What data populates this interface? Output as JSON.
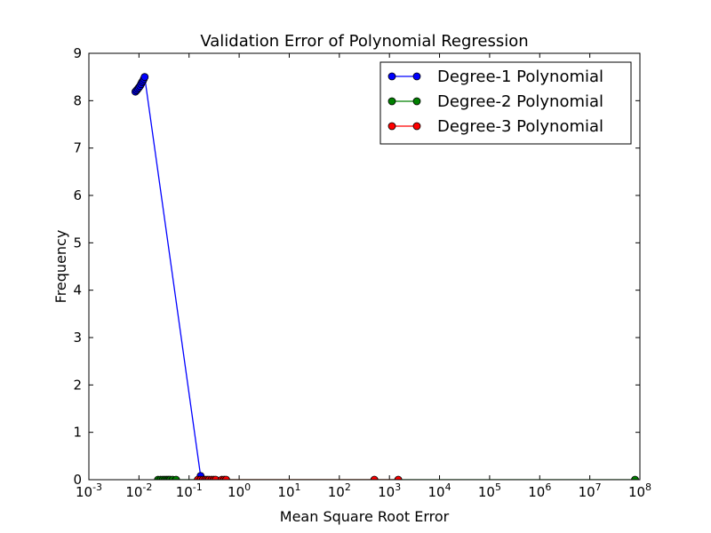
{
  "chart_data": {
    "type": "line",
    "title": "Validation Error of Polynomial Regression",
    "xlabel": "Mean Square Root Error",
    "ylabel": "Frequency",
    "xscale": "log",
    "xlim": [
      0.001,
      100000000
    ],
    "ylim": [
      0,
      9
    ],
    "legend_position": "top-right",
    "grid": false,
    "x_ticks": [
      {
        "value": 0.001,
        "base": "10",
        "exp": "-3"
      },
      {
        "value": 0.01,
        "base": "10",
        "exp": "-2"
      },
      {
        "value": 0.1,
        "base": "10",
        "exp": "-1"
      },
      {
        "value": 1,
        "base": "10",
        "exp": "0"
      },
      {
        "value": 10,
        "base": "10",
        "exp": "1"
      },
      {
        "value": 100,
        "base": "10",
        "exp": "2"
      },
      {
        "value": 1000,
        "base": "10",
        "exp": "3"
      },
      {
        "value": 10000,
        "base": "10",
        "exp": "4"
      },
      {
        "value": 100000,
        "base": "10",
        "exp": "5"
      },
      {
        "value": 1000000,
        "base": "10",
        "exp": "6"
      },
      {
        "value": 10000000,
        "base": "10",
        "exp": "7"
      },
      {
        "value": 100000000,
        "base": "10",
        "exp": "8"
      }
    ],
    "y_ticks": [
      "0",
      "1",
      "2",
      "3",
      "4",
      "5",
      "6",
      "7",
      "8",
      "9"
    ],
    "series": [
      {
        "name": "Degree-1 Polynomial",
        "color": "#0000ff",
        "x": [
          0.0085,
          0.009,
          0.0095,
          0.01,
          0.0105,
          0.011,
          0.0115,
          0.012,
          0.0125,
          0.013,
          0.17
        ],
        "y": [
          8.19,
          8.22,
          8.25,
          8.28,
          8.31,
          8.35,
          8.39,
          8.42,
          8.46,
          8.5,
          0.08
        ]
      },
      {
        "name": "Degree-2 Polynomial",
        "color": "#008000",
        "x": [
          0.024,
          0.027,
          0.03,
          0.033,
          0.036,
          0.039,
          0.042,
          0.047,
          0.055,
          80000000
        ],
        "y": [
          0,
          0,
          0,
          0,
          0,
          0,
          0,
          0,
          0,
          0
        ]
      },
      {
        "name": "Degree-3 Polynomial",
        "color": "#ff0000",
        "x": [
          0.15,
          0.17,
          0.19,
          0.21,
          0.23,
          0.25,
          0.28,
          0.31,
          0.34,
          0.45,
          0.5,
          0.55,
          500,
          1500
        ],
        "y": [
          0,
          0,
          0,
          0,
          0,
          0,
          0,
          0,
          0,
          0,
          0,
          0,
          0,
          0
        ]
      }
    ]
  }
}
